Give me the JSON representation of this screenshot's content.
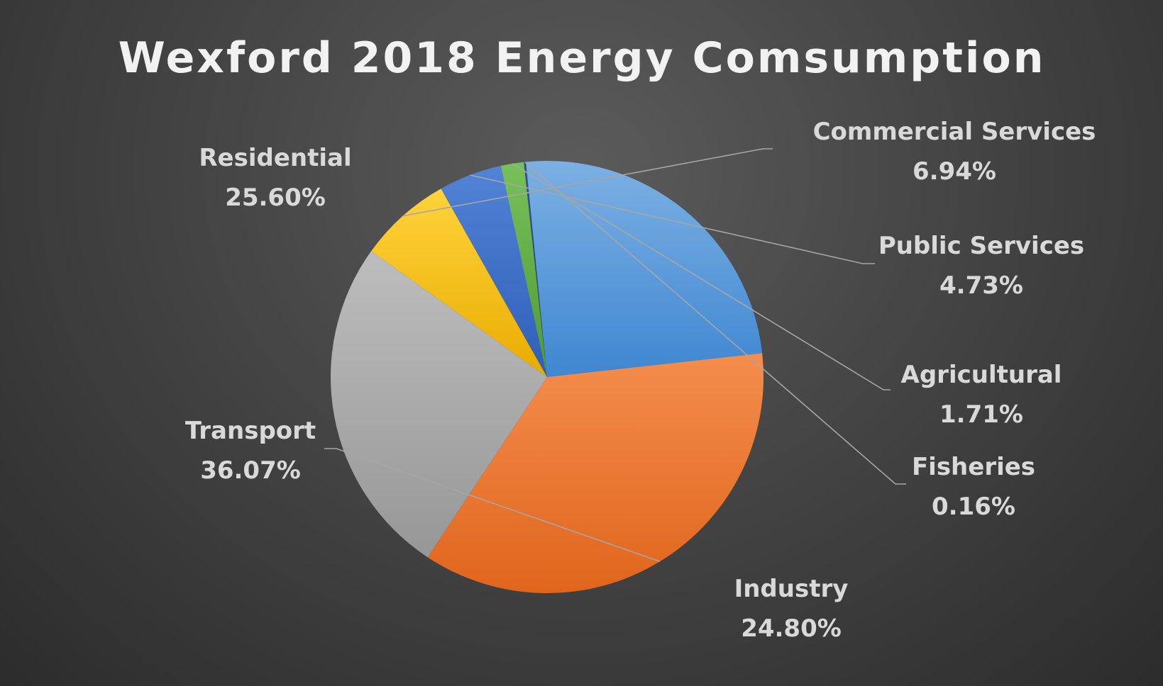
{
  "chart_data": {
    "type": "pie",
    "title": "Wexford 2018 Energy Comsumption",
    "start_angle_deg": 213.5,
    "direction": "clockwise",
    "slices": [
      {
        "label": "Residential",
        "value_text": "25.60%",
        "value": 25.6,
        "color_light": "#bdbdbd",
        "color_dark": "#979797"
      },
      {
        "label": "Commercial Services",
        "value_text": "6.94%",
        "value": 6.94,
        "color_light": "#ffd33c",
        "color_dark": "#e8ac00"
      },
      {
        "label": "Public Services",
        "value_text": "4.73%",
        "value": 4.73,
        "color_light": "#5383d6",
        "color_dark": "#2e5eb7"
      },
      {
        "label": "Agricultural",
        "value_text": "1.71%",
        "value": 1.71,
        "color_light": "#78c05a",
        "color_dark": "#4e9a35"
      },
      {
        "label": "Fisheries",
        "value_text": "0.16%",
        "value": 0.16,
        "color_light": "#2f5597",
        "color_dark": "#1f3b70"
      },
      {
        "label": "Industry",
        "value_text": "24.80%",
        "value": 24.8,
        "color_light": "#7cb0e3",
        "color_dark": "#3f87d1"
      },
      {
        "label": "Transport",
        "value_text": "36.07%",
        "value": 36.07,
        "color_light": "#f48d4d",
        "color_dark": "#e0651c"
      }
    ]
  }
}
